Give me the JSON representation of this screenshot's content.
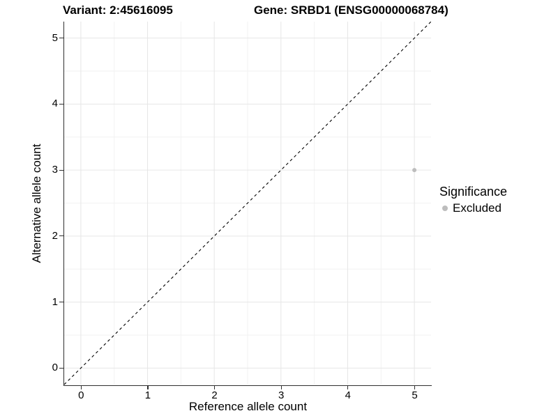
{
  "chart_data": {
    "type": "scatter",
    "title_left": "Variant: 2:45616095",
    "title_right": "Gene: SRBD1 (ENSG00000068784)",
    "xlabel": "Reference allele count",
    "ylabel": "Alternative allele count",
    "xlim": [
      -0.25,
      5.25
    ],
    "ylim": [
      -0.25,
      5.25
    ],
    "xticks": [
      0,
      1,
      2,
      3,
      4,
      5
    ],
    "yticks": [
      0,
      1,
      2,
      3,
      4,
      5
    ],
    "grid": {
      "on": true,
      "major_every": 1,
      "minor_every": 0.5
    },
    "reference_line": {
      "slope": 1,
      "intercept": 0,
      "style": "dashed"
    },
    "series": [
      {
        "name": "Excluded",
        "color": "#bdbdbd",
        "points": [
          {
            "x": 5,
            "y": 3
          }
        ]
      }
    ],
    "legend": {
      "title": "Significance",
      "position": "right",
      "entries": [
        {
          "label": "Excluded",
          "color": "#bdbdbd"
        }
      ]
    }
  },
  "colors": {
    "background": "#ffffff",
    "axis_line": "#2f2f2f",
    "grid_major": "#e6e6e6",
    "grid_minor": "#f2f2f2",
    "reference_line": "#000000",
    "text": "#000000"
  }
}
